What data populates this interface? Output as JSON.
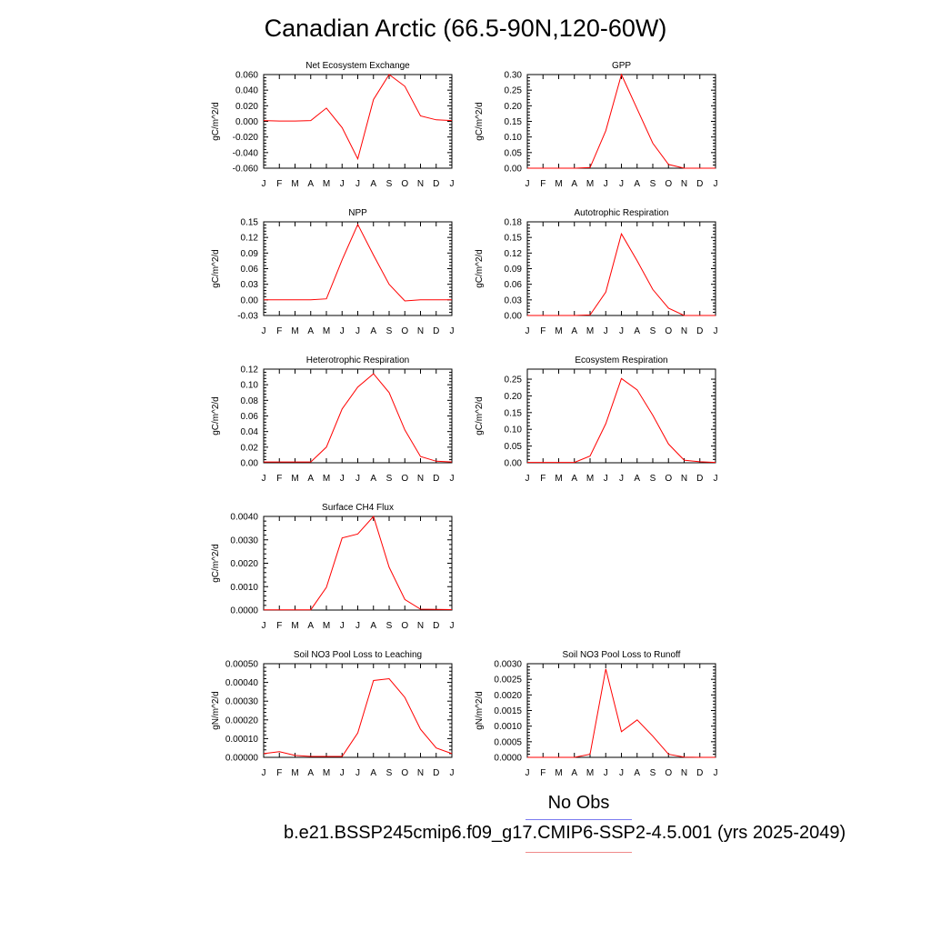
{
  "title": "Canadian Arctic (66.5-90N,120-60W)",
  "legend": {
    "obs_label": "No Obs",
    "case_label": "b.e21.BSSP245cmip6.f09_g17.CMIP6-SSP2-4.5.001 (yrs 2025-2049)",
    "obs_color": "#7b7bf0",
    "model_color": "#f08a8a"
  },
  "colors": {
    "series": "#ff0000",
    "axis": "#000000"
  },
  "chart_data": [
    {
      "type": "line",
      "title": "Net Ecosystem Exchange",
      "ylabel": "gC/m^2/d",
      "categories": [
        "J",
        "F",
        "M",
        "A",
        "M",
        "J",
        "J",
        "A",
        "S",
        "O",
        "N",
        "D",
        "J"
      ],
      "ylim": [
        -0.06,
        0.06
      ],
      "yticks": [
        -0.06,
        -0.04,
        -0.02,
        0.0,
        0.02,
        0.04,
        0.06
      ],
      "ytick_labels": [
        "-0.060",
        "-0.040",
        "-0.020",
        "0.000",
        "0.020",
        "0.040",
        "0.060"
      ],
      "values": [
        0.001,
        0.0005,
        0.0005,
        0.001,
        0.017,
        -0.008,
        -0.048,
        0.028,
        0.06,
        0.045,
        0.007,
        0.002,
        0.001
      ]
    },
    {
      "type": "line",
      "title": "GPP",
      "ylabel": "gC/m^2/d",
      "categories": [
        "J",
        "F",
        "M",
        "A",
        "M",
        "J",
        "J",
        "A",
        "S",
        "O",
        "N",
        "D",
        "J"
      ],
      "ylim": [
        0,
        0.3
      ],
      "yticks": [
        0,
        0.05,
        0.1,
        0.15,
        0.2,
        0.25,
        0.3
      ],
      "ytick_labels": [
        "0.00",
        "0.05",
        "0.10",
        "0.15",
        "0.20",
        "0.25",
        "0.30"
      ],
      "values": [
        0,
        0,
        0,
        0,
        0.002,
        0.12,
        0.3,
        0.19,
        0.08,
        0.012,
        0,
        0,
        0
      ]
    },
    {
      "type": "line",
      "title": "NPP",
      "ylabel": "gC/m^2/d",
      "categories": [
        "J",
        "F",
        "M",
        "A",
        "M",
        "J",
        "J",
        "A",
        "S",
        "O",
        "N",
        "D",
        "J"
      ],
      "ylim": [
        -0.03,
        0.15
      ],
      "yticks": [
        -0.03,
        0.0,
        0.03,
        0.06,
        0.09,
        0.12,
        0.15
      ],
      "ytick_labels": [
        "-0.03",
        "0.00",
        "0.03",
        "0.06",
        "0.09",
        "0.12",
        "0.15"
      ],
      "values": [
        0,
        0,
        0,
        0,
        0.002,
        0.077,
        0.145,
        0.086,
        0.03,
        -0.002,
        0,
        0,
        0
      ]
    },
    {
      "type": "line",
      "title": "Autotrophic Respiration",
      "ylabel": "gC/m^2/d",
      "categories": [
        "J",
        "F",
        "M",
        "A",
        "M",
        "J",
        "J",
        "A",
        "S",
        "O",
        "N",
        "D",
        "J"
      ],
      "ylim": [
        0,
        0.18
      ],
      "yticks": [
        0,
        0.03,
        0.06,
        0.09,
        0.12,
        0.15,
        0.18
      ],
      "ytick_labels": [
        "0.00",
        "0.03",
        "0.06",
        "0.09",
        "0.12",
        "0.15",
        "0.18"
      ],
      "values": [
        0,
        0,
        0,
        0,
        0.001,
        0.045,
        0.157,
        0.105,
        0.05,
        0.014,
        0,
        0,
        0
      ]
    },
    {
      "type": "line",
      "title": "Heterotrophic Respiration",
      "ylabel": "gC/m^2/d",
      "categories": [
        "J",
        "F",
        "M",
        "A",
        "M",
        "J",
        "J",
        "A",
        "S",
        "O",
        "N",
        "D",
        "J"
      ],
      "ylim": [
        0,
        0.12
      ],
      "yticks": [
        0,
        0.02,
        0.04,
        0.06,
        0.08,
        0.1,
        0.12
      ],
      "ytick_labels": [
        "0.00",
        "0.02",
        "0.04",
        "0.06",
        "0.08",
        "0.10",
        "0.12"
      ],
      "values": [
        0.001,
        0.001,
        0.001,
        0.001,
        0.02,
        0.069,
        0.097,
        0.114,
        0.09,
        0.042,
        0.008,
        0.002,
        0.001
      ]
    },
    {
      "type": "line",
      "title": "Ecosystem Respiration",
      "ylabel": "gC/m^2/d",
      "categories": [
        "J",
        "F",
        "M",
        "A",
        "M",
        "J",
        "J",
        "A",
        "S",
        "O",
        "N",
        "D",
        "J"
      ],
      "ylim": [
        0,
        0.28
      ],
      "yticks": [
        0,
        0.05,
        0.1,
        0.15,
        0.2,
        0.25
      ],
      "ytick_labels": [
        "0.00",
        "0.05",
        "0.10",
        "0.15",
        "0.20",
        "0.25"
      ],
      "values": [
        0.001,
        0.001,
        0.001,
        0.001,
        0.02,
        0.117,
        0.252,
        0.218,
        0.142,
        0.056,
        0.008,
        0.003,
        0.001
      ]
    },
    {
      "type": "line",
      "title": "Surface CH4 Flux",
      "ylabel": "gC/m^2/d",
      "categories": [
        "J",
        "F",
        "M",
        "A",
        "M",
        "J",
        "J",
        "A",
        "S",
        "O",
        "N",
        "D",
        "J"
      ],
      "ylim": [
        0,
        0.004
      ],
      "yticks": [
        0,
        0.001,
        0.002,
        0.003,
        0.004
      ],
      "ytick_labels": [
        "0.0000",
        "0.0010",
        "0.0020",
        "0.0030",
        "0.0040"
      ],
      "values": [
        1e-05,
        1e-05,
        1e-05,
        1e-05,
        0.00097,
        0.00308,
        0.00325,
        0.004,
        0.00183,
        0.00045,
        4e-05,
        3e-05,
        2e-05
      ]
    },
    {
      "type": "line",
      "title": "Soil NO3 Pool Loss to Leaching",
      "ylabel": "gN/m^2/d",
      "categories": [
        "J",
        "F",
        "M",
        "A",
        "M",
        "J",
        "J",
        "A",
        "S",
        "O",
        "N",
        "D",
        "J"
      ],
      "ylim": [
        0,
        0.0005
      ],
      "yticks": [
        0,
        0.0001,
        0.0002,
        0.0003,
        0.0004,
        0.0005
      ],
      "ytick_labels": [
        "0.00000",
        "0.00010",
        "0.00020",
        "0.00030",
        "0.00040",
        "0.00050"
      ],
      "values": [
        2e-05,
        3e-05,
        1e-05,
        5e-06,
        5e-06,
        5e-06,
        0.00013,
        0.00041,
        0.00042,
        0.00032,
        0.00015,
        5e-05,
        2e-05
      ]
    },
    {
      "type": "line",
      "title": "Soil NO3 Pool Loss to Runoff",
      "ylabel": "gN/m^2/d",
      "categories": [
        "J",
        "F",
        "M",
        "A",
        "M",
        "J",
        "J",
        "A",
        "S",
        "O",
        "N",
        "D",
        "J"
      ],
      "ylim": [
        0,
        0.003
      ],
      "yticks": [
        0,
        0.0005,
        0.001,
        0.0015,
        0.002,
        0.0025,
        0.003
      ],
      "ytick_labels": [
        "0.0000",
        "0.0005",
        "0.0010",
        "0.0015",
        "0.0020",
        "0.0025",
        "0.0030"
      ],
      "values": [
        0,
        0,
        0,
        0,
        0.0001,
        0.00283,
        0.00082,
        0.0012,
        0.00068,
        0.0001,
        1e-05,
        0,
        0
      ]
    }
  ]
}
